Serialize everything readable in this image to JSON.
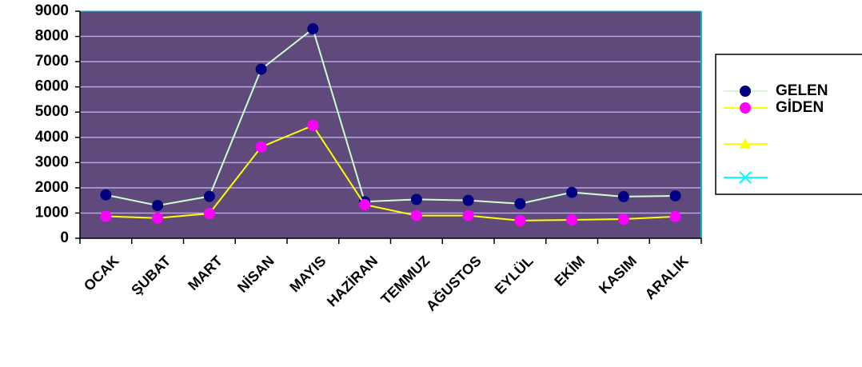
{
  "chart_data": {
    "type": "line",
    "categories": [
      "OCAK",
      "ŞUBAT",
      "MART",
      "NİSAN",
      "MAYIS",
      "HAZİRAN",
      "TEMMUZ",
      "AĞUSTOS",
      "EYLÜL",
      "EKİM",
      "KASIM",
      "ARALIK"
    ],
    "series": [
      {
        "name": "GELEN",
        "color": "#ccffcc",
        "marker": "circle",
        "marker_color": "#000080",
        "values": [
          1720,
          1300,
          1660,
          6700,
          8300,
          1450,
          1540,
          1500,
          1370,
          1820,
          1650,
          1680
        ]
      },
      {
        "name": "GİDEN",
        "color": "#ffff00",
        "marker": "circle",
        "marker_color": "#ff00ff",
        "values": [
          870,
          800,
          980,
          3620,
          4470,
          1330,
          900,
          900,
          700,
          730,
          760,
          860
        ]
      },
      {
        "color": "#ffff00",
        "marker": "triangle",
        "marker_color": "#ffff00",
        "values": [
          null,
          null,
          null,
          null,
          null,
          null,
          null,
          null,
          null,
          null,
          null,
          null
        ]
      },
      {
        "color": "#00ffff",
        "marker": "x",
        "marker_color": "#00ffff",
        "values": [
          null,
          null,
          null,
          null,
          null,
          null,
          null,
          null,
          null,
          null,
          null,
          null
        ]
      }
    ],
    "ylim": [
      0,
      9000
    ],
    "yticks": [
      0,
      1000,
      2000,
      3000,
      4000,
      5000,
      6000,
      7000,
      8000,
      9000
    ],
    "grid": true,
    "legend": "right"
  }
}
